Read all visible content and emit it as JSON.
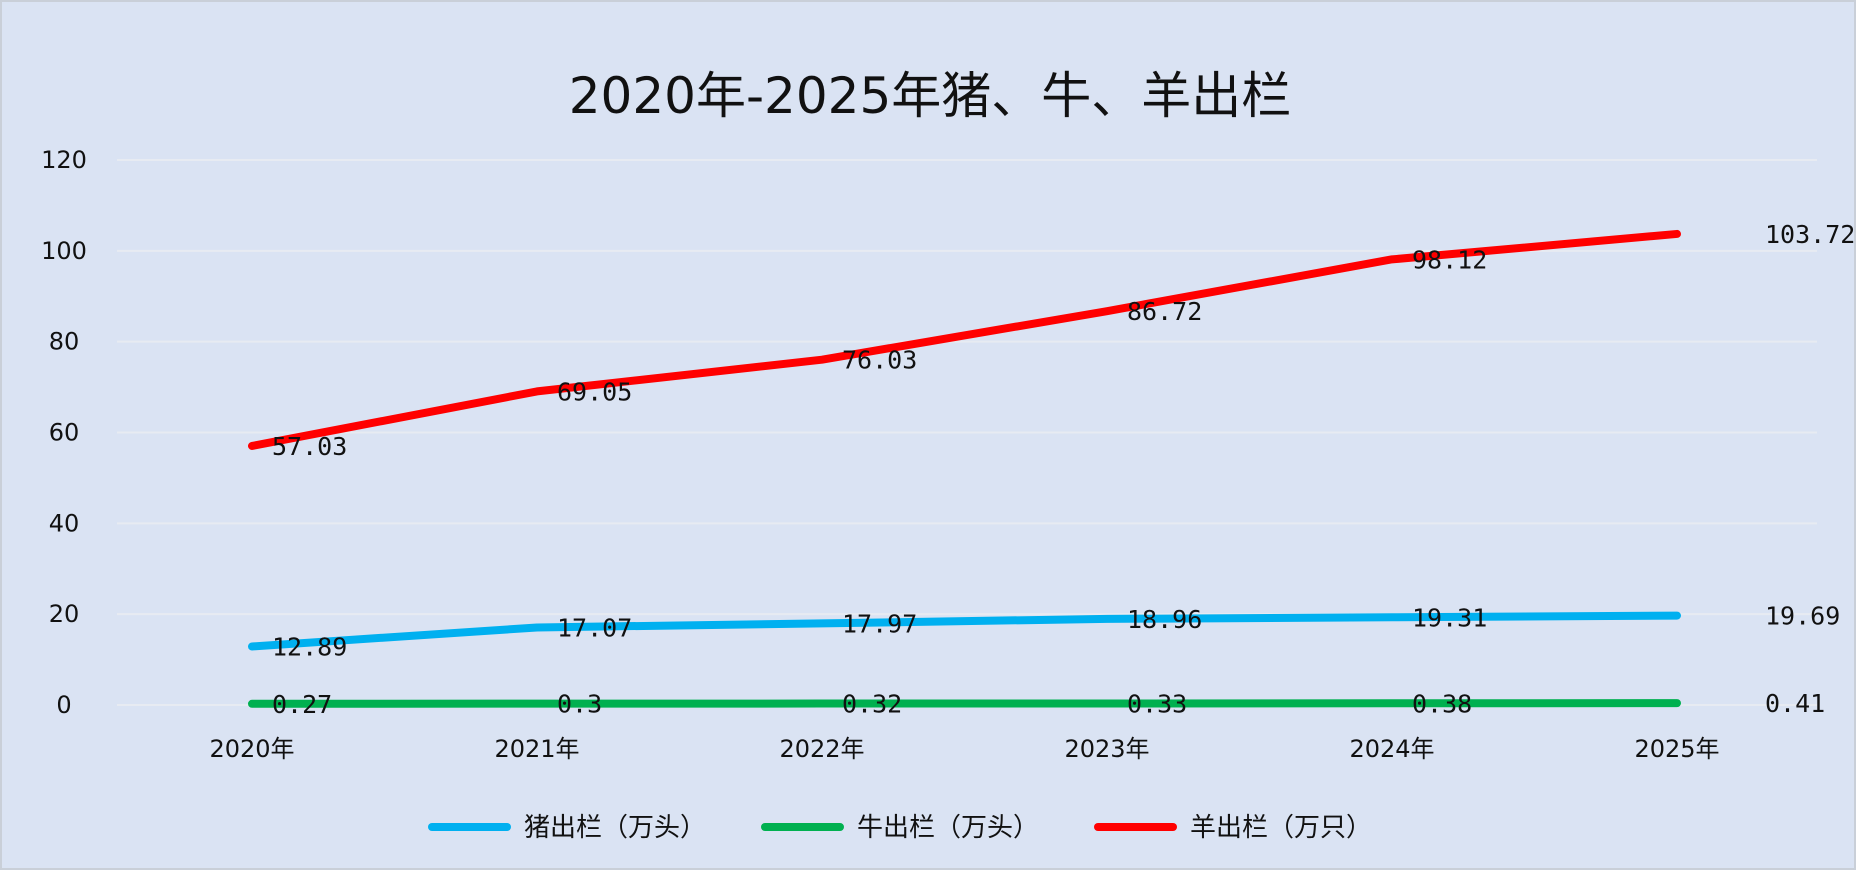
{
  "chart_data": {
    "type": "line",
    "title": "2020年-2025年猪、牛、羊出栏",
    "xlabel": "",
    "ylabel": "",
    "categories": [
      "2020年",
      "2021年",
      "2022年",
      "2023年",
      "2024年",
      "2025年"
    ],
    "yticks": [
      0,
      20,
      40,
      60,
      80,
      100,
      120
    ],
    "ylim": [
      0,
      120
    ],
    "grid": true,
    "legend_position": "bottom",
    "series": [
      {
        "name": "猪出栏（万头）",
        "color": "#00b0f0",
        "values": [
          12.89,
          17.07,
          17.97,
          18.96,
          19.31,
          19.69
        ],
        "labels": [
          "12.89",
          "17.07",
          "17.97",
          "18.96",
          "19.31",
          "19.69"
        ]
      },
      {
        "name": "牛出栏（万头）",
        "color": "#00b050",
        "values": [
          0.27,
          0.3,
          0.32,
          0.33,
          0.38,
          0.41
        ],
        "labels": [
          "0.27",
          "0.3",
          "0.32",
          "0.33",
          "0.38",
          "0.41"
        ]
      },
      {
        "name": "羊出栏（万只）",
        "color": "#ff0000",
        "values": [
          57.03,
          69.05,
          76.03,
          86.72,
          98.12,
          103.72
        ],
        "labels": [
          "57.03",
          "69.05",
          "76.03",
          "86.72",
          "98.12",
          "103.72"
        ]
      }
    ]
  }
}
